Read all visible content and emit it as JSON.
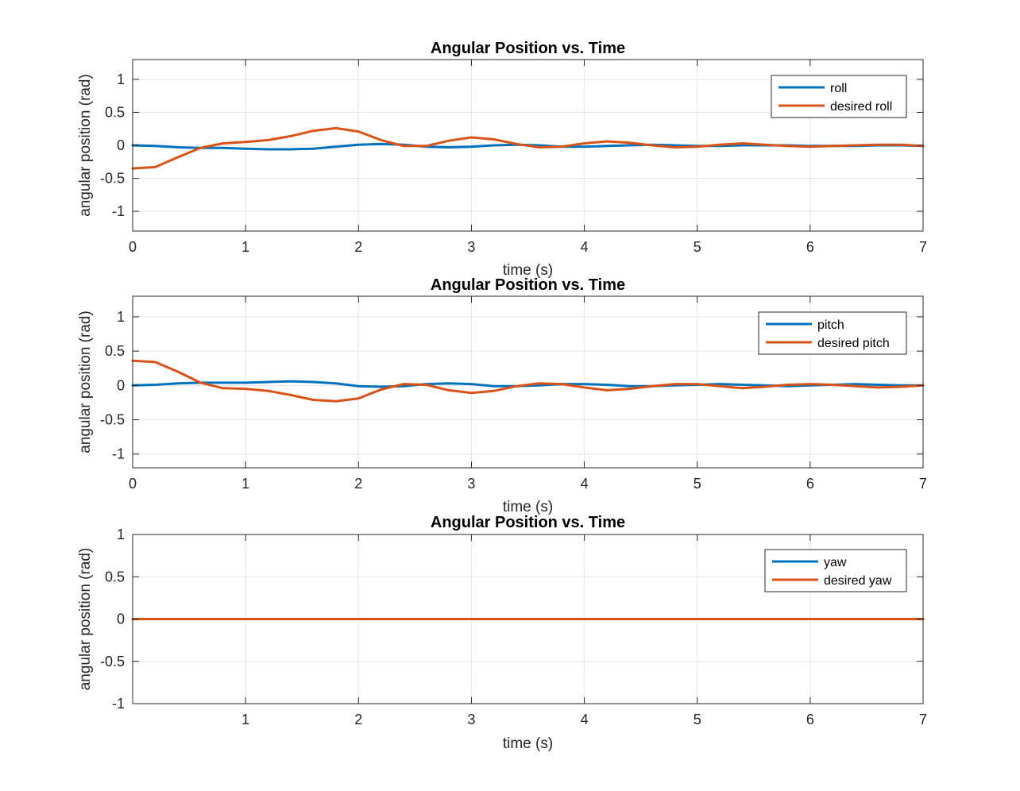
{
  "chart_data": [
    {
      "type": "line",
      "title": "Angular Position vs. Time",
      "xlabel": "time (s)",
      "ylabel": "angular position (rad)",
      "xlim": [
        0,
        7
      ],
      "ylim": [
        -1.3,
        1.3
      ],
      "xticks": [
        0,
        1,
        2,
        3,
        4,
        5,
        6,
        7
      ],
      "xtick_labels": [
        "0",
        "1",
        "2",
        "3",
        "4",
        "5",
        "6",
        "7"
      ],
      "yticks": [
        -1,
        -0.5,
        0,
        0.5,
        1
      ],
      "ytick_labels": [
        "-1",
        "-0.5",
        "0",
        "0.5",
        "1"
      ],
      "grid": true,
      "legend_position": "top-right",
      "x": [
        0,
        0.2,
        0.4,
        0.6,
        0.8,
        1.0,
        1.2,
        1.4,
        1.6,
        1.8,
        2.0,
        2.2,
        2.4,
        2.6,
        2.8,
        3.0,
        3.2,
        3.4,
        3.6,
        3.8,
        4.0,
        4.2,
        4.4,
        4.6,
        4.8,
        5.0,
        5.2,
        5.4,
        5.6,
        5.8,
        6.0,
        6.2,
        6.4,
        6.6,
        6.8,
        7.0
      ],
      "series": [
        {
          "name": "roll",
          "color": "#0072BD",
          "values": [
            0.0,
            -0.01,
            -0.03,
            -0.04,
            -0.04,
            -0.05,
            -0.06,
            -0.06,
            -0.05,
            -0.02,
            0.01,
            0.02,
            0.01,
            -0.02,
            -0.03,
            -0.02,
            0.0,
            0.01,
            0.0,
            -0.02,
            -0.02,
            -0.01,
            0.0,
            0.01,
            0.0,
            -0.01,
            -0.01,
            0.0,
            0.0,
            0.0,
            -0.01,
            -0.01,
            -0.01,
            0.0,
            0.0,
            -0.01
          ]
        },
        {
          "name": "desired roll",
          "color": "#D95319",
          "values": [
            -0.35,
            -0.33,
            -0.18,
            -0.04,
            0.03,
            0.05,
            0.08,
            0.14,
            0.22,
            0.26,
            0.21,
            0.08,
            -0.01,
            -0.01,
            0.07,
            0.12,
            0.09,
            0.02,
            -0.03,
            -0.02,
            0.03,
            0.06,
            0.04,
            0.0,
            -0.03,
            -0.02,
            0.01,
            0.03,
            0.01,
            -0.01,
            -0.02,
            -0.01,
            0.0,
            0.01,
            0.01,
            -0.01
          ]
        }
      ]
    },
    {
      "type": "line",
      "title": "Angular Position vs. Time",
      "xlabel": "time (s)",
      "ylabel": "angular position (rad)",
      "xlim": [
        0,
        7
      ],
      "ylim": [
        -1.2,
        1.3
      ],
      "xticks": [
        0,
        1,
        2,
        3,
        4,
        5,
        6,
        7
      ],
      "xtick_labels": [
        "0",
        "1",
        "2",
        "3",
        "4",
        "5",
        "6",
        "7"
      ],
      "yticks": [
        -1,
        -0.5,
        0,
        0.5,
        1
      ],
      "ytick_labels": [
        "-1",
        "-0.5",
        "0",
        "0.5",
        "1"
      ],
      "grid": true,
      "legend_position": "top-right",
      "x": [
        0,
        0.2,
        0.4,
        0.6,
        0.8,
        1.0,
        1.2,
        1.4,
        1.6,
        1.8,
        2.0,
        2.2,
        2.4,
        2.6,
        2.8,
        3.0,
        3.2,
        3.4,
        3.6,
        3.8,
        4.0,
        4.2,
        4.4,
        4.6,
        4.8,
        5.0,
        5.2,
        5.4,
        5.6,
        5.8,
        6.0,
        6.2,
        6.4,
        6.6,
        6.8,
        7.0
      ],
      "series": [
        {
          "name": "pitch",
          "color": "#0072BD",
          "values": [
            0.0,
            0.01,
            0.03,
            0.04,
            0.04,
            0.04,
            0.05,
            0.06,
            0.05,
            0.03,
            -0.01,
            -0.02,
            -0.01,
            0.02,
            0.03,
            0.02,
            -0.01,
            -0.01,
            0.0,
            0.02,
            0.02,
            0.01,
            -0.01,
            -0.01,
            0.0,
            0.01,
            0.02,
            0.01,
            0.0,
            -0.01,
            0.0,
            0.01,
            0.02,
            0.01,
            0.0,
            0.0
          ]
        },
        {
          "name": "desired pitch",
          "color": "#D95319",
          "values": [
            0.36,
            0.34,
            0.2,
            0.04,
            -0.04,
            -0.05,
            -0.08,
            -0.14,
            -0.21,
            -0.23,
            -0.19,
            -0.06,
            0.02,
            0.01,
            -0.07,
            -0.11,
            -0.08,
            -0.01,
            0.03,
            0.02,
            -0.03,
            -0.07,
            -0.05,
            -0.01,
            0.02,
            0.02,
            -0.01,
            -0.04,
            -0.02,
            0.01,
            0.02,
            0.01,
            -0.01,
            -0.03,
            -0.02,
            0.0
          ]
        }
      ]
    },
    {
      "type": "line",
      "title": "Angular Position vs. Time",
      "xlabel": "time (s)",
      "ylabel": "angular position (rad)",
      "xlim": [
        0,
        7
      ],
      "ylim": [
        -1,
        1
      ],
      "xticks": [
        1,
        2,
        3,
        4,
        5,
        6,
        7
      ],
      "xtick_labels": [
        "1",
        "2",
        "3",
        "4",
        "5",
        "6",
        "7"
      ],
      "yticks": [
        -1,
        -0.5,
        0,
        0.5,
        1
      ],
      "ytick_labels": [
        "-1",
        "-0.5",
        "0",
        "0.5",
        "1"
      ],
      "grid": true,
      "legend_position": "top-right",
      "x": [
        0,
        1,
        2,
        3,
        4,
        5,
        6,
        7
      ],
      "series": [
        {
          "name": "yaw",
          "color": "#0072BD",
          "values": [
            0,
            0,
            0,
            0,
            0,
            0,
            0,
            0
          ]
        },
        {
          "name": "desired yaw",
          "color": "#D95319",
          "values": [
            0,
            0,
            0,
            0,
            0,
            0,
            0,
            0
          ]
        }
      ]
    }
  ]
}
